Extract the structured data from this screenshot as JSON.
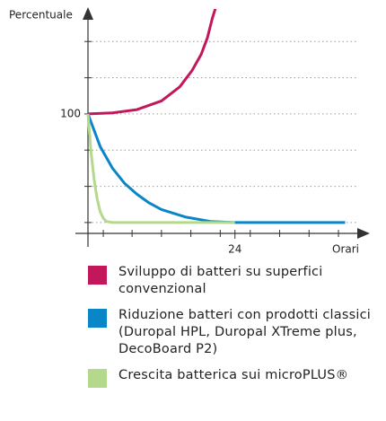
{
  "chart_data": {
    "type": "line",
    "y_label": "Percentuale",
    "x_label": "Orari",
    "xlim": [
      0,
      45
    ],
    "ylim": [
      -10,
      195
    ],
    "xticks": [
      24
    ],
    "yticks": [
      100
    ],
    "xminor": [
      2.5,
      7.2,
      12,
      16.8,
      21.6,
      26.5,
      31.3,
      36.1,
      40.9
    ],
    "ygrid": [
      0,
      33.3,
      66.7,
      133.3,
      166.7
    ],
    "grid": true,
    "legend": "bottom",
    "series": [
      {
        "name": "Sviluppo di batteri su superfici convenzional",
        "color": "#c2185b",
        "x": [
          0,
          4,
          8,
          12,
          15,
          17,
          18.5,
          19.5,
          20.3,
          20.8
        ],
        "values": [
          100,
          101,
          104,
          112,
          125,
          140,
          155,
          170,
          188,
          197
        ]
      },
      {
        "name": "Riduzione batteri con prodotti classici (Duropal HPL, Duropal XTreme plus, DecoBoard P2)",
        "color": "#0a85c8",
        "x": [
          0,
          2,
          4,
          6,
          8,
          10,
          12,
          16,
          20,
          24,
          42
        ],
        "values": [
          100,
          70,
          50,
          36,
          26,
          18,
          12,
          5,
          1,
          0,
          0
        ]
      },
      {
        "name": "Crescita batterica sui microPLUS®",
        "color": "#b5d98c",
        "x": [
          0,
          0.5,
          1,
          1.5,
          2,
          2.5,
          3,
          4,
          24
        ],
        "values": [
          100,
          65,
          40,
          22,
          10,
          4,
          1,
          0,
          0
        ]
      }
    ]
  }
}
